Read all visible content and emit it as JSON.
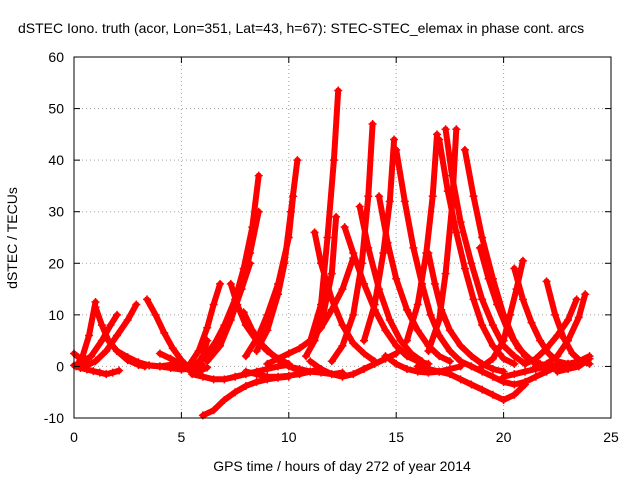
{
  "chart_data": {
    "type": "line",
    "title": "dSTEC Iono. truth (acor, Lon=351, Lat=43, h=67): STEC-STEC_elemax in phase cont. arcs",
    "xlabel": "GPS time / hours of day 272 of year 2014",
    "ylabel": "dSTEC  / TECUs",
    "xlim": [
      0,
      25
    ],
    "ylim": [
      -10,
      60
    ],
    "xticks": [
      0,
      5,
      10,
      15,
      20,
      25
    ],
    "yticks": [
      -10,
      0,
      10,
      20,
      30,
      40,
      50,
      60
    ],
    "xtick_labels": [
      "0",
      "5",
      "10",
      "15",
      "20",
      "25"
    ],
    "ytick_labels": [
      "-10",
      "0",
      "10",
      "20",
      "30",
      "40",
      "50",
      "60"
    ],
    "grid": true,
    "marker": "plus",
    "color": "#ff0000",
    "series": [
      {
        "x": [
          0.0,
          0.2,
          0.4,
          0.6
        ],
        "y": [
          2.5,
          1.8,
          1.2,
          0.8
        ]
      },
      {
        "x": [
          0.0,
          0.3,
          0.6,
          0.9,
          1.2,
          1.5,
          1.8,
          2.1
        ],
        "y": [
          0.2,
          -0.3,
          -0.6,
          -0.9,
          -1.2,
          -1.5,
          -1.2,
          -0.8
        ]
      },
      {
        "x": [
          0.1,
          0.4,
          0.7,
          1.0
        ],
        "y": [
          0.0,
          2.0,
          6.0,
          12.5
        ]
      },
      {
        "x": [
          1.0,
          1.3,
          1.6,
          2.0,
          2.5,
          3.0,
          3.3
        ],
        "y": [
          11.5,
          8.0,
          5.0,
          3.0,
          1.2,
          0.3,
          0.0
        ]
      },
      {
        "x": [
          0.3,
          0.8,
          1.3,
          1.7,
          2.0
        ],
        "y": [
          0.5,
          2.0,
          5.0,
          8.0,
          10.0
        ]
      },
      {
        "x": [
          0.5,
          1.0,
          1.5,
          2.0,
          2.5,
          2.9
        ],
        "y": [
          0.0,
          1.0,
          3.0,
          6.0,
          9.0,
          12.0
        ]
      },
      {
        "x": [
          3.4,
          3.8,
          4.2,
          4.6,
          5.0,
          5.4,
          5.8,
          6.2
        ],
        "y": [
          13.0,
          10.0,
          6.5,
          3.5,
          1.2,
          -0.5,
          -1.0,
          -0.2
        ]
      },
      {
        "x": [
          2.0,
          2.5,
          3.0,
          3.5,
          4.0,
          4.5,
          5.0
        ],
        "y": [
          3.0,
          1.8,
          0.8,
          0.2,
          0.0,
          0.3,
          0.8
        ]
      },
      {
        "x": [
          3.0,
          3.5,
          4.0,
          4.5,
          5.0,
          5.5,
          6.0
        ],
        "y": [
          0.3,
          0.2,
          0.0,
          -0.3,
          -0.6,
          -0.4,
          0.2
        ]
      },
      {
        "x": [
          4.0,
          4.5,
          5.0,
          5.5,
          6.0,
          6.3
        ],
        "y": [
          2.5,
          1.5,
          0.5,
          0.0,
          1.5,
          3.0
        ]
      },
      {
        "x": [
          4.5,
          5.0,
          5.5,
          6.0,
          6.2
        ],
        "y": [
          1.5,
          0.0,
          -1.0,
          2.0,
          5.0
        ]
      },
      {
        "x": [
          5.0,
          5.4,
          5.8,
          6.2,
          6.5,
          6.8
        ],
        "y": [
          -0.5,
          0.5,
          3.0,
          7.5,
          12.0,
          16.0
        ]
      },
      {
        "x": [
          5.5,
          6.0,
          6.5,
          7.0,
          7.5,
          8.0,
          8.5,
          9.0,
          9.5,
          10.0
        ],
        "y": [
          -1.5,
          -2.0,
          -2.5,
          -2.5,
          -2.0,
          -1.5,
          -1.0,
          -0.5,
          0.0,
          0.3
        ]
      },
      {
        "x": [
          5.8,
          6.3,
          6.8,
          7.3,
          7.8,
          8.2
        ],
        "y": [
          0.5,
          3.0,
          6.0,
          10.0,
          15.0,
          20.0
        ]
      },
      {
        "x": [
          6.2,
          6.8,
          7.3,
          7.8,
          8.2,
          8.6
        ],
        "y": [
          1.0,
          4.0,
          9.0,
          15.0,
          22.0,
          30.0
        ]
      },
      {
        "x": [
          6.5,
          7.0,
          7.5,
          7.9,
          8.3,
          8.6
        ],
        "y": [
          4.0,
          8.0,
          13.0,
          19.0,
          27.0,
          37.0
        ]
      },
      {
        "x": [
          6.0,
          6.5,
          7.0,
          7.5,
          8.0,
          8.5,
          9.0,
          9.5,
          10.0
        ],
        "y": [
          -9.5,
          -8.5,
          -6.5,
          -5.0,
          -3.8,
          -3.0,
          -2.5,
          -2.2,
          -2.0
        ]
      },
      {
        "x": [
          7.3,
          7.6,
          8.0,
          8.5,
          9.0,
          9.5,
          10.0
        ],
        "y": [
          16.0,
          12.0,
          8.0,
          5.0,
          3.0,
          1.5,
          0.5
        ]
      },
      {
        "x": [
          7.9,
          8.3,
          8.8,
          9.3,
          9.8,
          10.3
        ],
        "y": [
          10.5,
          7.0,
          4.0,
          2.0,
          0.5,
          -0.5
        ]
      },
      {
        "x": [
          8.0,
          8.5,
          9.0,
          9.5,
          10.0,
          10.5,
          11.0,
          11.5
        ],
        "y": [
          -1.0,
          -1.5,
          -2.0,
          -2.0,
          -1.8,
          -1.5,
          -1.0,
          -0.5
        ]
      },
      {
        "x": [
          8.0,
          8.6,
          9.0,
          9.5,
          10.0,
          10.2
        ],
        "y": [
          2.0,
          6.0,
          10.0,
          16.0,
          25.0,
          33.0
        ]
      },
      {
        "x": [
          8.5,
          9.0,
          9.5,
          9.8,
          10.1,
          10.4
        ],
        "y": [
          3.0,
          7.0,
          14.0,
          20.0,
          30.0,
          40.0
        ]
      },
      {
        "x": [
          9.0,
          9.5,
          10.0,
          10.5,
          11.0,
          11.5,
          12.0,
          12.5,
          13.0
        ],
        "y": [
          0.5,
          1.5,
          2.5,
          3.5,
          5.0,
          7.5,
          11.0,
          15.0,
          21.0
        ]
      },
      {
        "x": [
          10.0,
          10.5,
          11.0,
          11.5,
          12.0,
          12.5
        ],
        "y": [
          0.0,
          -0.5,
          -1.0,
          -1.2,
          -1.5,
          -1.2
        ]
      },
      {
        "x": [
          11.2,
          11.5,
          12.0,
          12.5,
          13.0,
          13.5,
          14.0
        ],
        "y": [
          26.0,
          20.0,
          13.0,
          8.0,
          4.5,
          2.5,
          1.0
        ]
      },
      {
        "x": [
          11.0,
          11.5,
          11.8,
          12.1,
          12.3
        ],
        "y": [
          5.0,
          12.0,
          25.0,
          40.0,
          53.5
        ]
      },
      {
        "x": [
          10.8,
          11.2,
          11.6,
          12.0,
          12.2
        ],
        "y": [
          2.0,
          5.0,
          10.0,
          18.0,
          29.0
        ]
      },
      {
        "x": [
          11.0,
          11.5,
          12.0,
          12.5,
          13.0,
          13.5,
          14.0,
          14.5,
          15.0
        ],
        "y": [
          1.0,
          -0.5,
          -1.5,
          -2.0,
          -1.5,
          -0.5,
          0.5,
          1.5,
          2.5
        ]
      },
      {
        "x": [
          12.6,
          13.0,
          13.5,
          14.0,
          14.5,
          15.0,
          15.5,
          16.0,
          16.5
        ],
        "y": [
          27.0,
          22.0,
          16.0,
          11.0,
          7.0,
          4.0,
          2.0,
          1.0,
          0.5
        ]
      },
      {
        "x": [
          12.0,
          12.5,
          13.0,
          13.4,
          13.7,
          13.9
        ],
        "y": [
          1.0,
          4.0,
          10.0,
          20.0,
          33.0,
          47.0
        ]
      },
      {
        "x": [
          13.3,
          13.7,
          14.2,
          14.7,
          15.2,
          15.7,
          16.2
        ],
        "y": [
          31.0,
          23.0,
          15.0,
          9.0,
          5.0,
          2.5,
          1.0
        ]
      },
      {
        "x": [
          14.2,
          14.6,
          15.0,
          15.5,
          16.0,
          16.5,
          17.0,
          17.5
        ],
        "y": [
          33.0,
          24.0,
          17.0,
          11.0,
          7.0,
          4.0,
          2.0,
          1.0
        ]
      },
      {
        "x": [
          13.5,
          14.0,
          14.4,
          14.7,
          14.9
        ],
        "y": [
          5.0,
          12.0,
          22.0,
          32.0,
          44.0
        ]
      },
      {
        "x": [
          15.0,
          15.4,
          15.8,
          16.2,
          16.6,
          17.0,
          17.5,
          18.0
        ],
        "y": [
          42.0,
          32.0,
          23.0,
          16.0,
          10.0,
          6.0,
          3.0,
          1.0
        ]
      },
      {
        "x": [
          14.5,
          15.0,
          15.5,
          16.0,
          16.5,
          17.0,
          17.5,
          18.0
        ],
        "y": [
          2.0,
          0.5,
          -0.5,
          -1.0,
          -1.2,
          -1.0,
          -0.5,
          0.0
        ]
      },
      {
        "x": [
          16.5,
          16.8,
          17.1,
          17.5,
          18.0,
          18.5,
          19.0,
          19.5,
          20.0
        ],
        "y": [
          22.0,
          16.0,
          11.0,
          7.0,
          4.0,
          2.0,
          0.5,
          -0.5,
          -1.0
        ]
      },
      {
        "x": [
          15.5,
          16.0,
          16.4,
          16.7,
          16.9
        ],
        "y": [
          5.0,
          12.0,
          22.0,
          33.0,
          45.0
        ]
      },
      {
        "x": [
          16.5,
          17.0,
          17.3,
          17.6,
          17.8
        ],
        "y": [
          3.0,
          9.0,
          18.0,
          31.0,
          46.0
        ]
      },
      {
        "x": [
          17.0,
          17.4,
          17.8,
          18.2,
          18.6,
          19.0,
          19.5,
          20.0,
          20.5
        ],
        "y": [
          44.0,
          34.0,
          26.0,
          19.0,
          13.0,
          8.0,
          4.0,
          1.5,
          0.5
        ]
      },
      {
        "x": [
          17.3,
          17.6,
          18.0,
          18.5,
          19.0,
          19.5,
          20.0,
          20.5,
          21.0
        ],
        "y": [
          46.0,
          37.0,
          28.0,
          20.0,
          13.0,
          8.0,
          4.0,
          2.0,
          0.5
        ]
      },
      {
        "x": [
          18.2,
          18.6,
          19.0,
          19.5,
          20.0,
          20.5,
          21.0,
          21.5,
          22.0
        ],
        "y": [
          42.0,
          33.0,
          25.0,
          17.0,
          10.0,
          5.0,
          2.0,
          0.5,
          0.0
        ]
      },
      {
        "x": [
          18.9,
          19.3,
          19.7,
          20.2,
          20.7,
          21.2,
          21.7,
          22.2
        ],
        "y": [
          23.0,
          17.0,
          12.0,
          7.0,
          3.5,
          1.5,
          0.5,
          0.0
        ]
      },
      {
        "x": [
          16.0,
          16.5,
          17.0,
          17.5,
          18.0,
          18.5,
          19.0,
          19.5,
          20.0,
          20.5,
          21.0
        ],
        "y": [
          0.0,
          -0.5,
          -1.0,
          -1.5,
          -2.5,
          -3.5,
          -4.5,
          -5.5,
          -6.5,
          -5.5,
          -3.5
        ]
      },
      {
        "x": [
          18.0,
          18.5,
          19.0,
          19.5,
          20.0,
          20.5,
          21.0,
          21.5,
          22.0,
          22.5
        ],
        "y": [
          1.0,
          0.0,
          -1.0,
          -2.0,
          -3.0,
          -3.5,
          -3.0,
          -2.0,
          -1.0,
          0.0
        ]
      },
      {
        "x": [
          19.0,
          19.5,
          20.0,
          20.3,
          20.6,
          20.9
        ],
        "y": [
          0.0,
          1.5,
          5.0,
          10.0,
          15.0,
          20.5
        ]
      },
      {
        "x": [
          20.5,
          20.9,
          21.3,
          21.7,
          22.1,
          22.5,
          23.0,
          23.5
        ],
        "y": [
          19.0,
          13.0,
          8.5,
          5.0,
          2.5,
          1.0,
          0.5,
          0.5
        ]
      },
      {
        "x": [
          20.0,
          20.5,
          21.0,
          21.5,
          22.0,
          22.5,
          23.0,
          23.5,
          24.0
        ],
        "y": [
          -2.0,
          -1.5,
          -1.0,
          -0.5,
          0.0,
          0.2,
          0.5,
          1.0,
          2.0
        ]
      },
      {
        "x": [
          22.0,
          22.4,
          22.8,
          23.2,
          23.6,
          24.0
        ],
        "y": [
          16.5,
          10.0,
          5.5,
          2.5,
          1.0,
          0.5
        ]
      },
      {
        "x": [
          21.0,
          21.5,
          22.0,
          22.5,
          23.0,
          23.4
        ],
        "y": [
          0.5,
          1.5,
          3.5,
          6.0,
          9.0,
          13.0
        ]
      },
      {
        "x": [
          21.5,
          22.0,
          22.5,
          23.0,
          23.5,
          23.8
        ],
        "y": [
          0.0,
          0.5,
          2.0,
          5.0,
          9.5,
          14.0
        ]
      },
      {
        "x": [
          22.5,
          23.0,
          23.5,
          24.0
        ],
        "y": [
          -1.0,
          -0.5,
          0.0,
          1.5
        ]
      }
    ]
  }
}
